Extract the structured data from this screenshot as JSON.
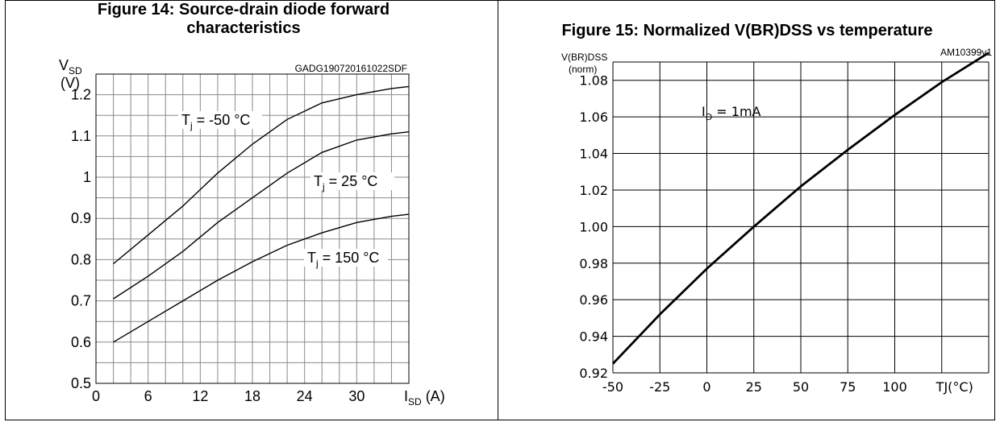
{
  "chart_data": [
    {
      "type": "line",
      "title_line1": "Figure 14: Source-drain diode forward",
      "title_line2": "characteristics",
      "figure_code": "GADG190720161022SDF",
      "ylabel": "V",
      "ylabel_sub": "SD",
      "ylabel_unit": "(V)",
      "xlabel": "I",
      "xlabel_sub": "SD",
      "xlabel_unit": " (A)",
      "xlim": [
        0,
        36
      ],
      "ylim": [
        0.5,
        1.25
      ],
      "xticks": [
        0,
        6,
        12,
        18,
        24,
        30
      ],
      "yticks": [
        0.5,
        0.6,
        0.7,
        0.8,
        0.9,
        1,
        1.1,
        1.2
      ],
      "ytick_labels": [
        "0.5",
        "0.6",
        "0.7",
        "0.8",
        "0.9",
        "1",
        "1.1",
        "1.2"
      ],
      "grid": true,
      "series": [
        {
          "name": "Tj = -50 °C",
          "label_main": "T",
          "label_sub": "j",
          "label_rest": " = -50 °C",
          "x": [
            2,
            6,
            10,
            14,
            18,
            22,
            26,
            30,
            34,
            36
          ],
          "y": [
            0.79,
            0.86,
            0.93,
            1.01,
            1.08,
            1.14,
            1.18,
            1.2,
            1.215,
            1.22
          ]
        },
        {
          "name": "Tj = 25 °C",
          "label_main": "T",
          "label_sub": "j",
          "label_rest": " = 25 °C",
          "x": [
            2,
            6,
            10,
            14,
            18,
            22,
            26,
            30,
            34,
            36
          ],
          "y": [
            0.705,
            0.76,
            0.82,
            0.89,
            0.95,
            1.01,
            1.06,
            1.09,
            1.105,
            1.11
          ]
        },
        {
          "name": "Tj = 150 °C",
          "label_main": "T",
          "label_sub": "j",
          "label_rest": " = 150 °C",
          "x": [
            2,
            6,
            10,
            14,
            18,
            22,
            26,
            30,
            34,
            36
          ],
          "y": [
            0.6,
            0.65,
            0.7,
            0.75,
            0.795,
            0.835,
            0.865,
            0.89,
            0.905,
            0.91
          ]
        }
      ]
    },
    {
      "type": "line",
      "title": "Figure 15: Normalized V(BR)DSS vs temperature",
      "figure_code": "AM10399v1",
      "ylabel": "V(BR)DSS",
      "ylabel_unit": "(norm)",
      "xlabel": "TJ(°C)",
      "xlim": [
        -50,
        150
      ],
      "ylim": [
        0.92,
        1.09
      ],
      "xticks": [
        -50,
        -25,
        0,
        25,
        50,
        75,
        100
      ],
      "xtick_labels": [
        "-50",
        "-25",
        "0",
        "25",
        "50",
        "75",
        "100"
      ],
      "yticks": [
        0.92,
        0.94,
        0.96,
        0.98,
        1.0,
        1.02,
        1.04,
        1.06,
        1.08
      ],
      "ytick_labels": [
        "0.92",
        "0.94",
        "0.96",
        "0.98",
        "1.00",
        "1.02",
        "1.04",
        "1.06",
        "1.08"
      ],
      "grid": true,
      "annotation": "ID = 1mA",
      "annotation_main": "I",
      "annotation_sub": "D",
      "annotation_rest": " = 1mA",
      "series": [
        {
          "x": [
            -50,
            -25,
            0,
            25,
            50,
            75,
            100,
            125,
            150
          ],
          "y": [
            0.925,
            0.952,
            0.977,
            1.0,
            1.022,
            1.042,
            1.061,
            1.079,
            1.095
          ]
        }
      ]
    }
  ]
}
